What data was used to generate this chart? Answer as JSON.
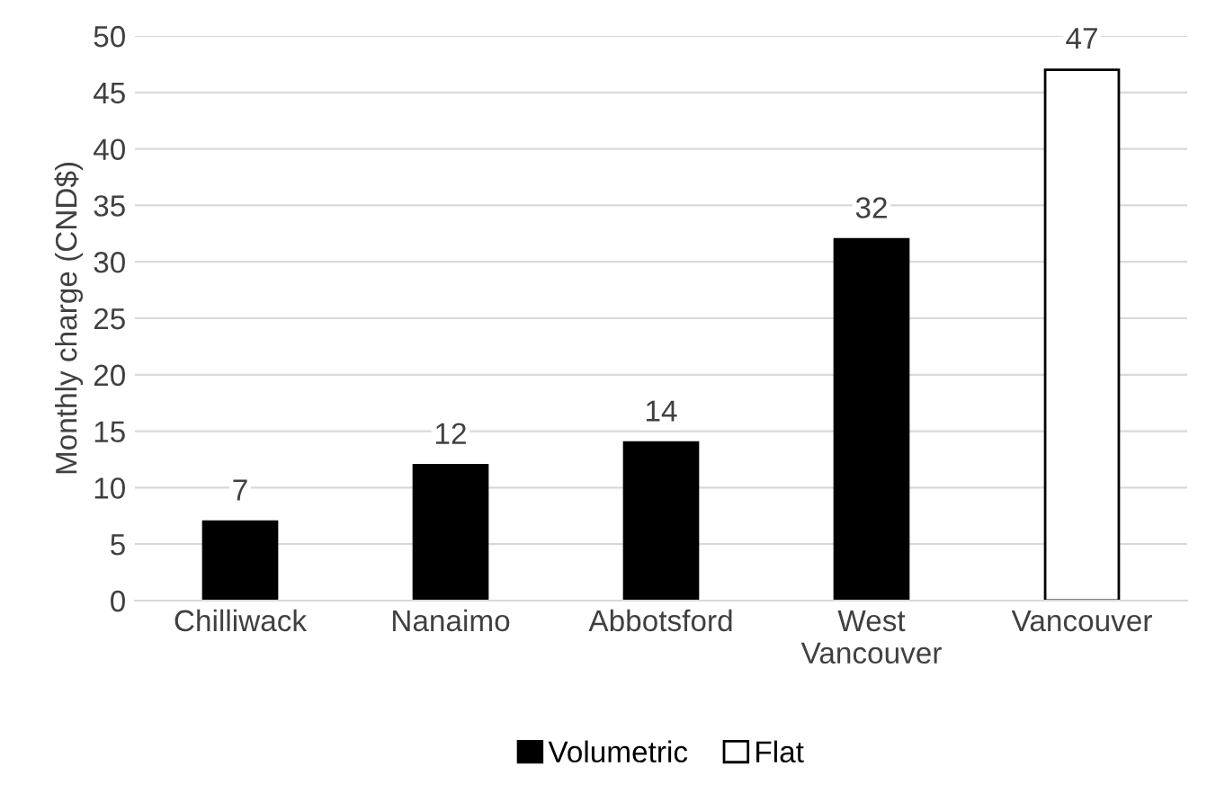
{
  "chart_data": {
    "type": "bar",
    "ylabel": "Monthly charge (CND$)",
    "categories": [
      "Chilliwack",
      "Nanaimo",
      "Abbotsford",
      "West\nVancouver",
      "Vancouver"
    ],
    "series": [
      {
        "name": "Volumetric",
        "color": "#000000",
        "values": [
          7,
          12,
          14,
          32,
          null
        ]
      },
      {
        "name": "Flat",
        "color": "#ffffff",
        "values": [
          null,
          null,
          null,
          null,
          47
        ]
      }
    ],
    "ylim": [
      0,
      50
    ],
    "yticks": [
      0,
      5,
      10,
      15,
      20,
      25,
      30,
      35,
      40,
      45,
      50
    ],
    "grid": "y",
    "legend": "bottom",
    "data_labels": true
  }
}
